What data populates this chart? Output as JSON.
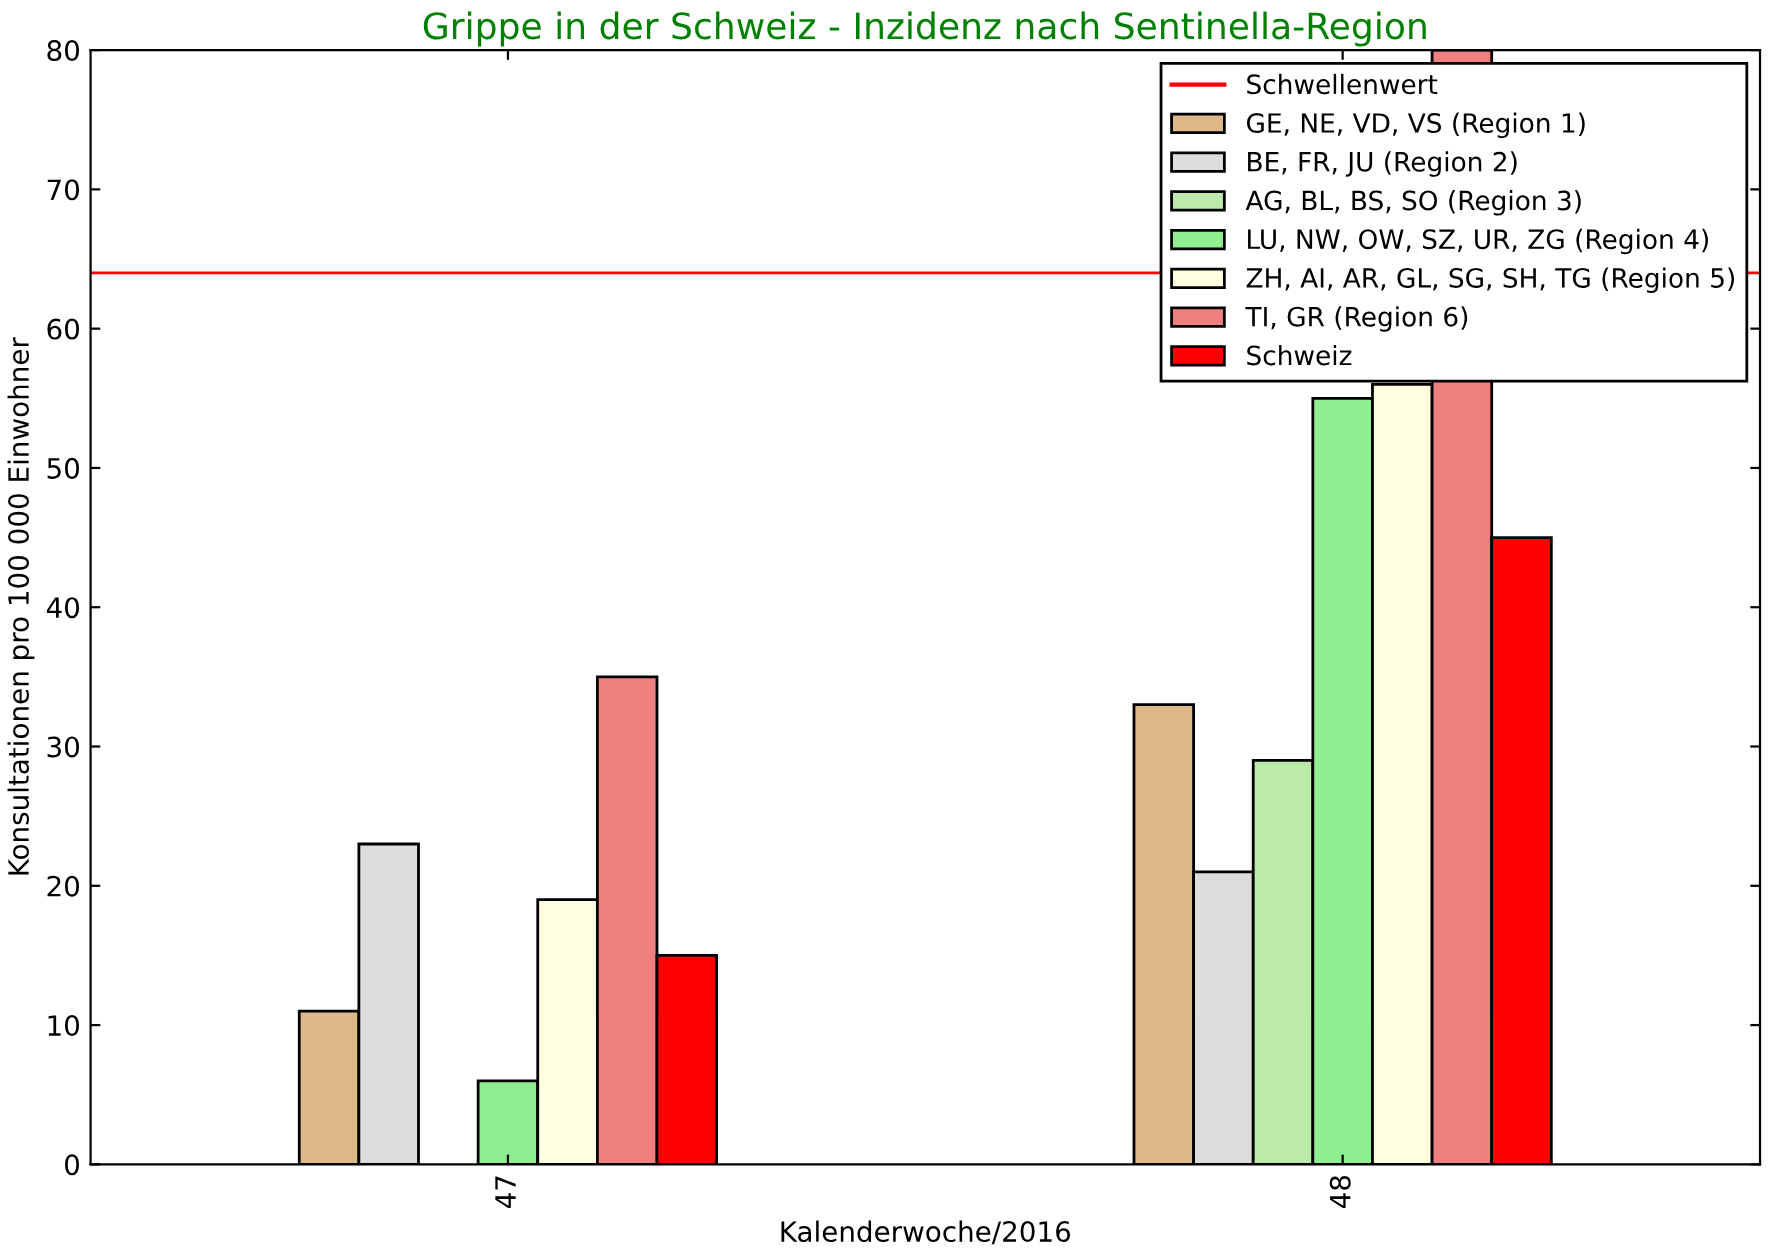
{
  "chart_data": {
    "type": "bar",
    "title": "Grippe in der Schweiz - Inzidenz nach Sentinella-Region",
    "xlabel": "Kalenderwoche/2016",
    "ylabel": "Konsultationen pro 100 000 Einwohner",
    "categories": [
      "47",
      "48"
    ],
    "series": [
      {
        "name": "GE, NE, VD, VS (Region 1)",
        "color": "#deb887",
        "values": [
          11,
          33
        ]
      },
      {
        "name": "BE, FR, JU (Region 2)",
        "color": "#dcdcdc",
        "values": [
          23,
          21
        ]
      },
      {
        "name": "AG, BL, BS, SO (Region 3)",
        "color": "#bbeaaa",
        "values": [
          null,
          29
        ]
      },
      {
        "name": "LU, NW, OW, SZ, UR, ZG (Region 4)",
        "color": "#90ee90",
        "values": [
          6,
          55
        ]
      },
      {
        "name": "ZH, AI, AR, GL, SG, SH, TG (Region 5)",
        "color": "#ffffe0",
        "values": [
          19,
          56
        ]
      },
      {
        "name": "TI, GR (Region 6)",
        "color": "#f08080",
        "values": [
          35,
          80
        ]
      },
      {
        "name": "Schweiz",
        "color": "#ff0000",
        "values": [
          15,
          45
        ]
      }
    ],
    "ref_lines": [
      {
        "axis": "y",
        "value": 64,
        "label": "Schwellenwert",
        "color": "#ff0000"
      }
    ],
    "ylim": [
      0,
      80
    ],
    "yticks": [
      0,
      10,
      20,
      30,
      40,
      50,
      60,
      70,
      80
    ],
    "grid": false,
    "legend": "top right"
  }
}
